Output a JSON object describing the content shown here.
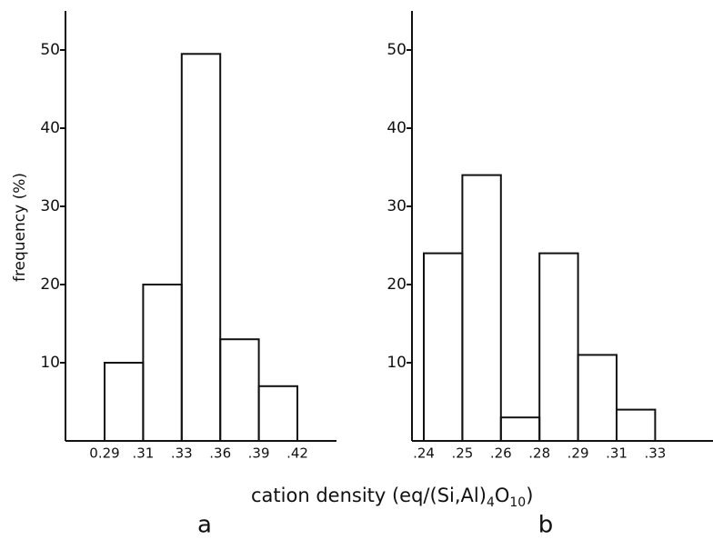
{
  "chart_data": [
    {
      "type": "histogram",
      "label": "a",
      "ylabel": "frequency (%)",
      "bins": [
        "0.29",
        ".31",
        ".33",
        ".36",
        ".39",
        ".42"
      ],
      "values": [
        10,
        20,
        49.5,
        13,
        7
      ],
      "color": "#111111",
      "ylim": [
        0,
        55
      ],
      "yticks": [
        10,
        20,
        30,
        40,
        50
      ]
    },
    {
      "type": "histogram",
      "label": "b",
      "bins": [
        ".24",
        ".25",
        ".26",
        ".28",
        ".29",
        ".31",
        ".33"
      ],
      "values": [
        24,
        34,
        3,
        24,
        11,
        4
      ],
      "color": "#111111",
      "ylim": [
        0,
        55
      ],
      "yticks": [
        10,
        20,
        30,
        40,
        50
      ]
    }
  ],
  "xlabel": [
    "cation density (eq/(Si,Al)",
    "4",
    "O",
    "10",
    ")"
  ]
}
